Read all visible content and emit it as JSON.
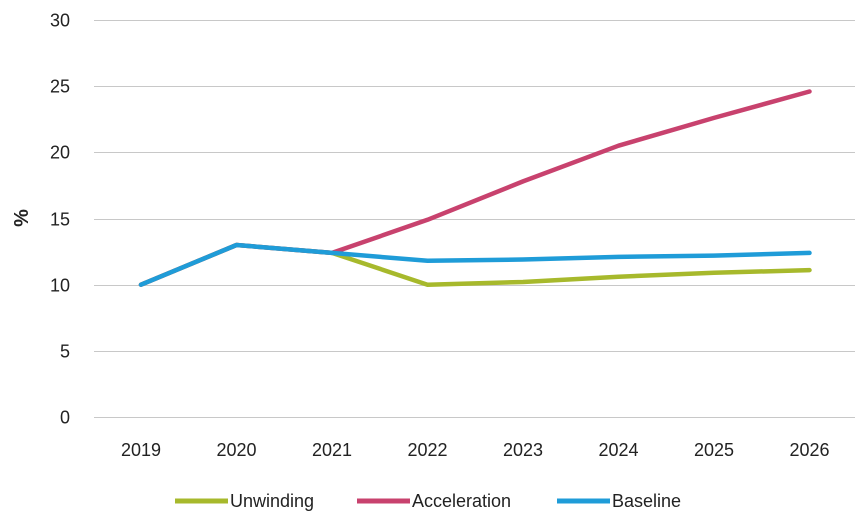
{
  "chart_data": {
    "type": "line",
    "categories": [
      "2019",
      "2020",
      "2021",
      "2022",
      "2023",
      "2024",
      "2025",
      "2026"
    ],
    "series": [
      {
        "name": "Unwinding",
        "color": "#a7b92c",
        "values": [
          10.0,
          13.0,
          12.4,
          10.0,
          10.2,
          10.6,
          10.9,
          11.1
        ]
      },
      {
        "name": "Acceleration",
        "color": "#c8426e",
        "values": [
          10.0,
          13.0,
          12.4,
          14.9,
          17.8,
          20.5,
          22.6,
          24.6
        ]
      },
      {
        "name": "Baseline",
        "color": "#1f9cd8",
        "values": [
          10.0,
          13.0,
          12.4,
          11.8,
          11.9,
          12.1,
          12.2,
          12.4
        ]
      }
    ],
    "ylabel": "%",
    "xlabel": "",
    "ylim": [
      0,
      30
    ],
    "yticks": [
      "0",
      "5",
      "10",
      "15",
      "20",
      "25",
      "30"
    ],
    "grid": true,
    "legend_position": "bottom"
  }
}
